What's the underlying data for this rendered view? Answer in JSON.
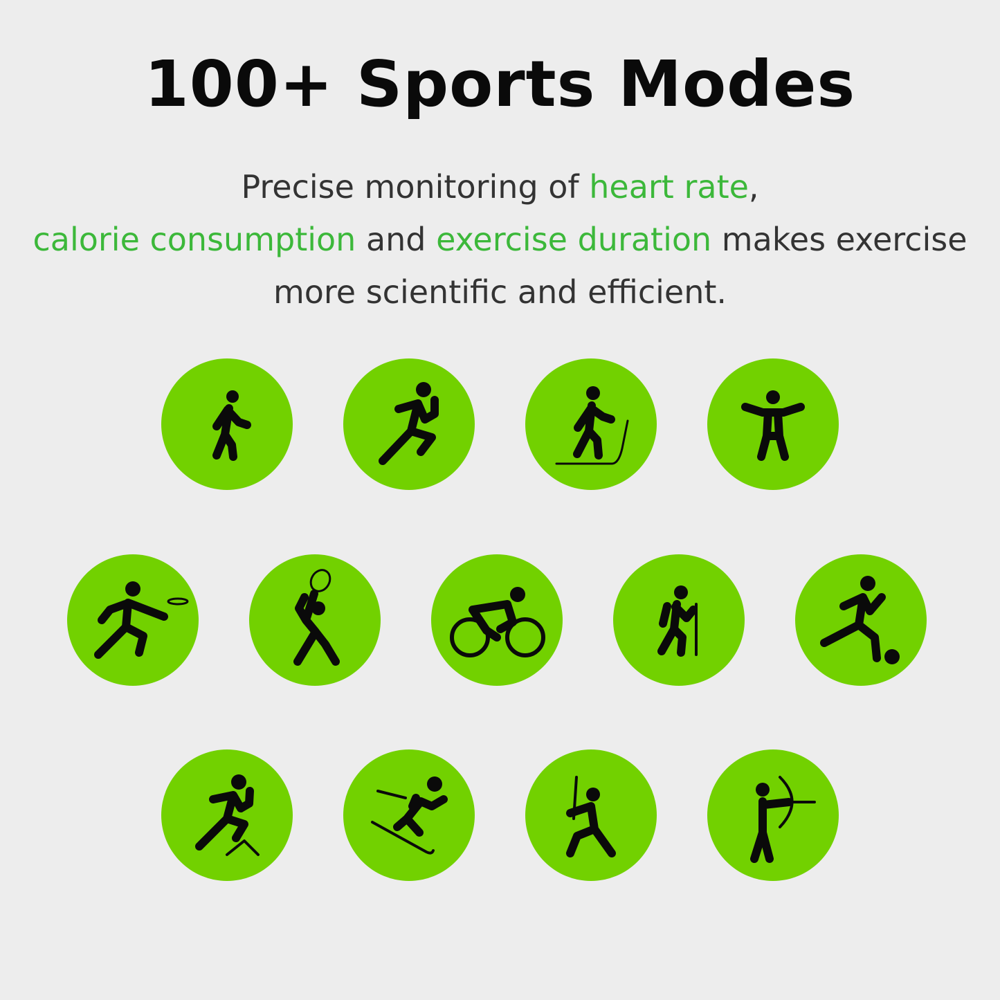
{
  "title": "100+ Sports Modes",
  "subtitle": {
    "p1": "Precise monitoring of ",
    "h1": "heart rate",
    "p2": ", ",
    "h2": "calorie consumption",
    "p3": " and ",
    "h3": "exercise duration",
    "p4": " makes exercise more scientific and efficient."
  },
  "colors": {
    "background": "#ededed",
    "circle": "#72d100",
    "highlight": "#3cb83a",
    "icon": "#0a0a0a"
  },
  "icons": [
    "walking-icon",
    "running-icon",
    "skiing-walk-icon",
    "yoga-icon",
    "frisbee-icon",
    "tennis-icon",
    "cycling-icon",
    "hiking-icon",
    "soccer-icon",
    "hurdles-icon",
    "skiing-icon",
    "fencing-icon",
    "archery-icon"
  ]
}
